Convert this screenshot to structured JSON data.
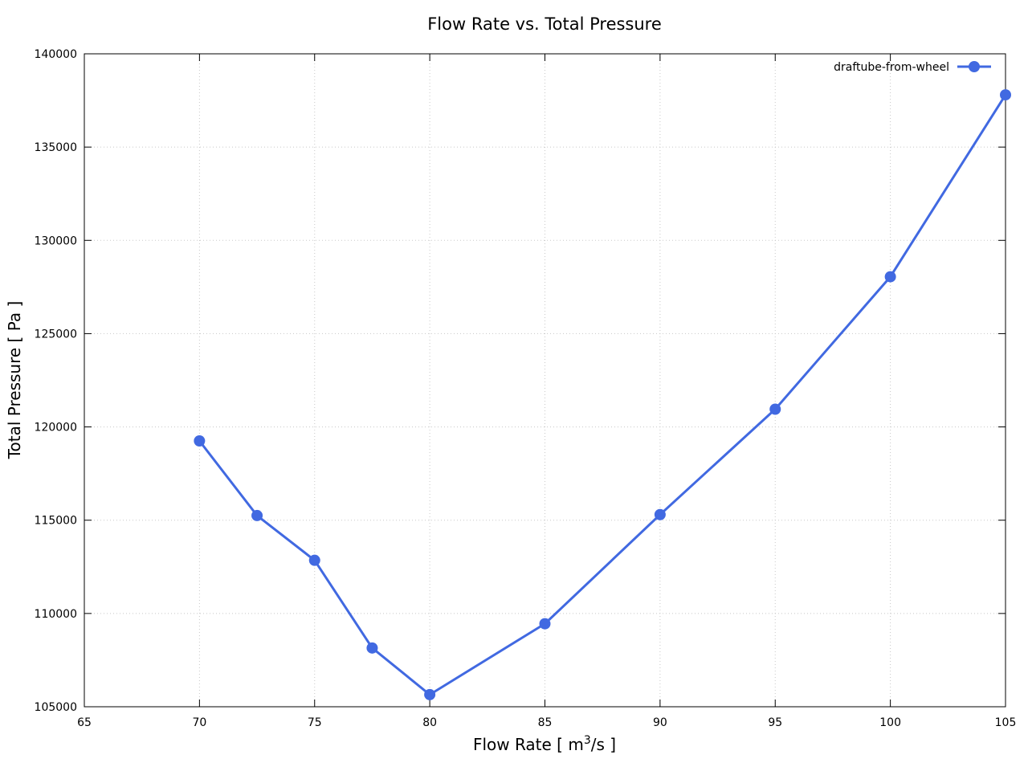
{
  "chart_data": {
    "type": "line",
    "title": "Flow Rate vs. Total Pressure",
    "xlabel_main": "Flow Rate [ m",
    "xlabel_sup": "3",
    "xlabel_end": "/s ]",
    "ylabel": "Total Pressure [ Pa ]",
    "xlim": [
      65,
      105
    ],
    "ylim": [
      105000,
      140000
    ],
    "xticks": [
      65,
      70,
      75,
      80,
      85,
      90,
      95,
      100,
      105
    ],
    "yticks": [
      105000,
      110000,
      115000,
      120000,
      125000,
      130000,
      135000,
      140000
    ],
    "grid": true,
    "legend_position": "top-right",
    "series": [
      {
        "name": "draftube-from-wheel",
        "color": "#4169e1",
        "marker": "circle",
        "x": [
          70,
          72.5,
          75,
          77.5,
          80,
          85,
          90,
          95,
          100,
          105
        ],
        "y": [
          119250,
          115250,
          112850,
          108150,
          105650,
          109450,
          115300,
          120950,
          128050,
          137800
        ]
      }
    ]
  }
}
